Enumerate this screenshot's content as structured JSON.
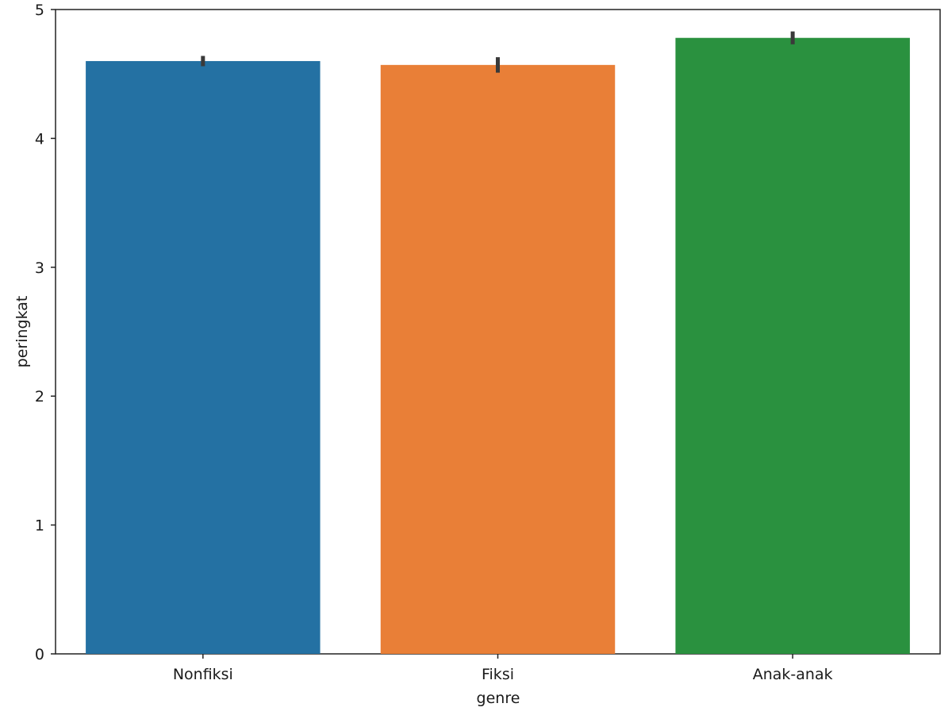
{
  "chart_data": {
    "type": "bar",
    "xlabel": "genre",
    "ylabel": "peringkat",
    "categories": [
      "Nonfiksi",
      "Fiksi",
      "Anak-anak"
    ],
    "values": [
      4.6,
      4.57,
      4.78
    ],
    "error_bars": [
      [
        4.56,
        4.64
      ],
      [
        4.51,
        4.63
      ],
      [
        4.73,
        4.83
      ]
    ],
    "ylim": [
      0,
      5
    ],
    "yticks": [
      "0",
      "1",
      "2",
      "3",
      "4",
      "5"
    ],
    "colors": [
      "#2471a3",
      "#e97f37",
      "#2a913f"
    ],
    "error_bar_color": "#3a3a3a",
    "grid": false
  }
}
